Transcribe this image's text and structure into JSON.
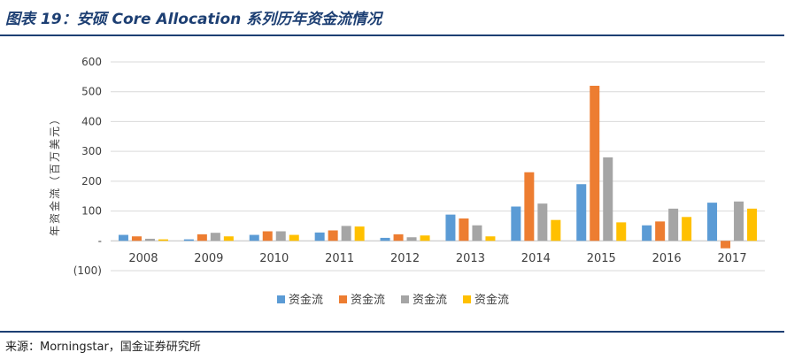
{
  "header": {
    "title": "图表 19：安硕 Core Allocation 系列历年资金流情况"
  },
  "footer": {
    "source": "来源：Morningstar，国金证券研究所"
  },
  "colors": {
    "accent": "#1d3f73",
    "grid": "#d9d9d9",
    "axis_text": "#404040"
  },
  "chart_data": {
    "type": "bar",
    "title": "",
    "xlabel": "",
    "ylabel": "年资金流（百万美元）",
    "categories": [
      "2008",
      "2009",
      "2010",
      "2011",
      "2012",
      "2013",
      "2014",
      "2015",
      "2016",
      "2017"
    ],
    "ylim": [
      -100,
      600
    ],
    "yticks": [
      -100,
      0,
      100,
      200,
      300,
      400,
      500,
      600
    ],
    "ytick_labels": [
      "(100)",
      "-",
      "100",
      "200",
      "300",
      "400",
      "500",
      "600"
    ],
    "grid": true,
    "legend_position": "bottom",
    "series": [
      {
        "name": "资金流",
        "color": "#5b9bd5",
        "values": [
          20,
          5,
          20,
          28,
          10,
          88,
          115,
          190,
          52,
          128
        ]
      },
      {
        "name": "资金流",
        "color": "#ed7d31",
        "values": [
          15,
          22,
          32,
          35,
          22,
          75,
          230,
          520,
          65,
          -25
        ]
      },
      {
        "name": "资金流",
        "color": "#a5a5a5",
        "values": [
          7,
          27,
          32,
          50,
          12,
          52,
          125,
          280,
          108,
          132
        ]
      },
      {
        "name": "资金流",
        "color": "#ffc000",
        "values": [
          5,
          15,
          20,
          48,
          18,
          15,
          70,
          62,
          80,
          108
        ]
      }
    ]
  }
}
